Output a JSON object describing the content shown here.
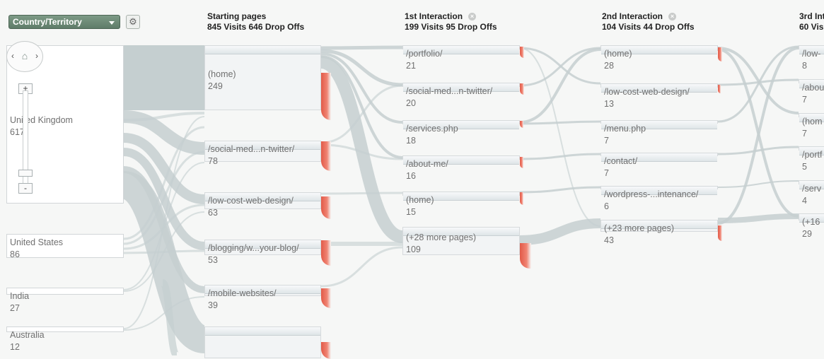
{
  "toolbar": {
    "dimension_label": "Country/Territory",
    "settings_icon": "gear-icon"
  },
  "columns": [
    {
      "id": "starting",
      "title": "Starting pages",
      "subtitle": "845 Visits 646 Drop Offs",
      "nodes": [
        {
          "label": "(home)",
          "count": "249"
        },
        {
          "label": "/social-med...n-twitter/",
          "count": "78"
        },
        {
          "label": "/low-cost-web-design/",
          "count": "63"
        },
        {
          "label": "/blogging/w...your-blog/",
          "count": "53"
        },
        {
          "label": "/mobile-websites/",
          "count": "39"
        },
        {
          "label": "",
          "count": ""
        }
      ]
    },
    {
      "id": "interaction1",
      "title": "1st Interaction",
      "subtitle": "199 Visits 95 Drop Offs",
      "nodes": [
        {
          "label": "/portfolio/",
          "count": "21"
        },
        {
          "label": "/social-med...n-twitter/",
          "count": "20"
        },
        {
          "label": "/services.php",
          "count": "18"
        },
        {
          "label": "/about-me/",
          "count": "16"
        },
        {
          "label": "(home)",
          "count": "15"
        },
        {
          "label": "(+28 more pages)",
          "count": "109"
        }
      ]
    },
    {
      "id": "interaction2",
      "title": "2nd Interaction",
      "subtitle": "104 Visits 44 Drop Offs",
      "nodes": [
        {
          "label": "(home)",
          "count": "28"
        },
        {
          "label": "/low-cost-web-design/",
          "count": "13"
        },
        {
          "label": "/menu.php",
          "count": "7"
        },
        {
          "label": "/contact/",
          "count": "7"
        },
        {
          "label": "/wordpress-...intenance/",
          "count": "6"
        },
        {
          "label": "(+23 more pages)",
          "count": "43"
        }
      ]
    },
    {
      "id": "interaction3",
      "title": "3rd Int",
      "subtitle": "60 Visits",
      "nodes": [
        {
          "label": "/low-",
          "count": "8"
        },
        {
          "label": "/abou",
          "count": "7"
        },
        {
          "label": "(hom",
          "count": "7"
        },
        {
          "label": "/portf",
          "count": "5"
        },
        {
          "label": "/serv",
          "count": "4"
        },
        {
          "label": "(+16",
          "count": "29"
        }
      ]
    }
  ],
  "dimensions": [
    {
      "label": "United Kingdom",
      "count": "617"
    },
    {
      "label": "United States",
      "count": "86"
    },
    {
      "label": "India",
      "count": "27"
    },
    {
      "label": "Australia",
      "count": "12"
    }
  ],
  "colors": {
    "flow": "#c5cfd0",
    "dropoff": "#e25a48",
    "dimension_select": "#6d8a77"
  }
}
